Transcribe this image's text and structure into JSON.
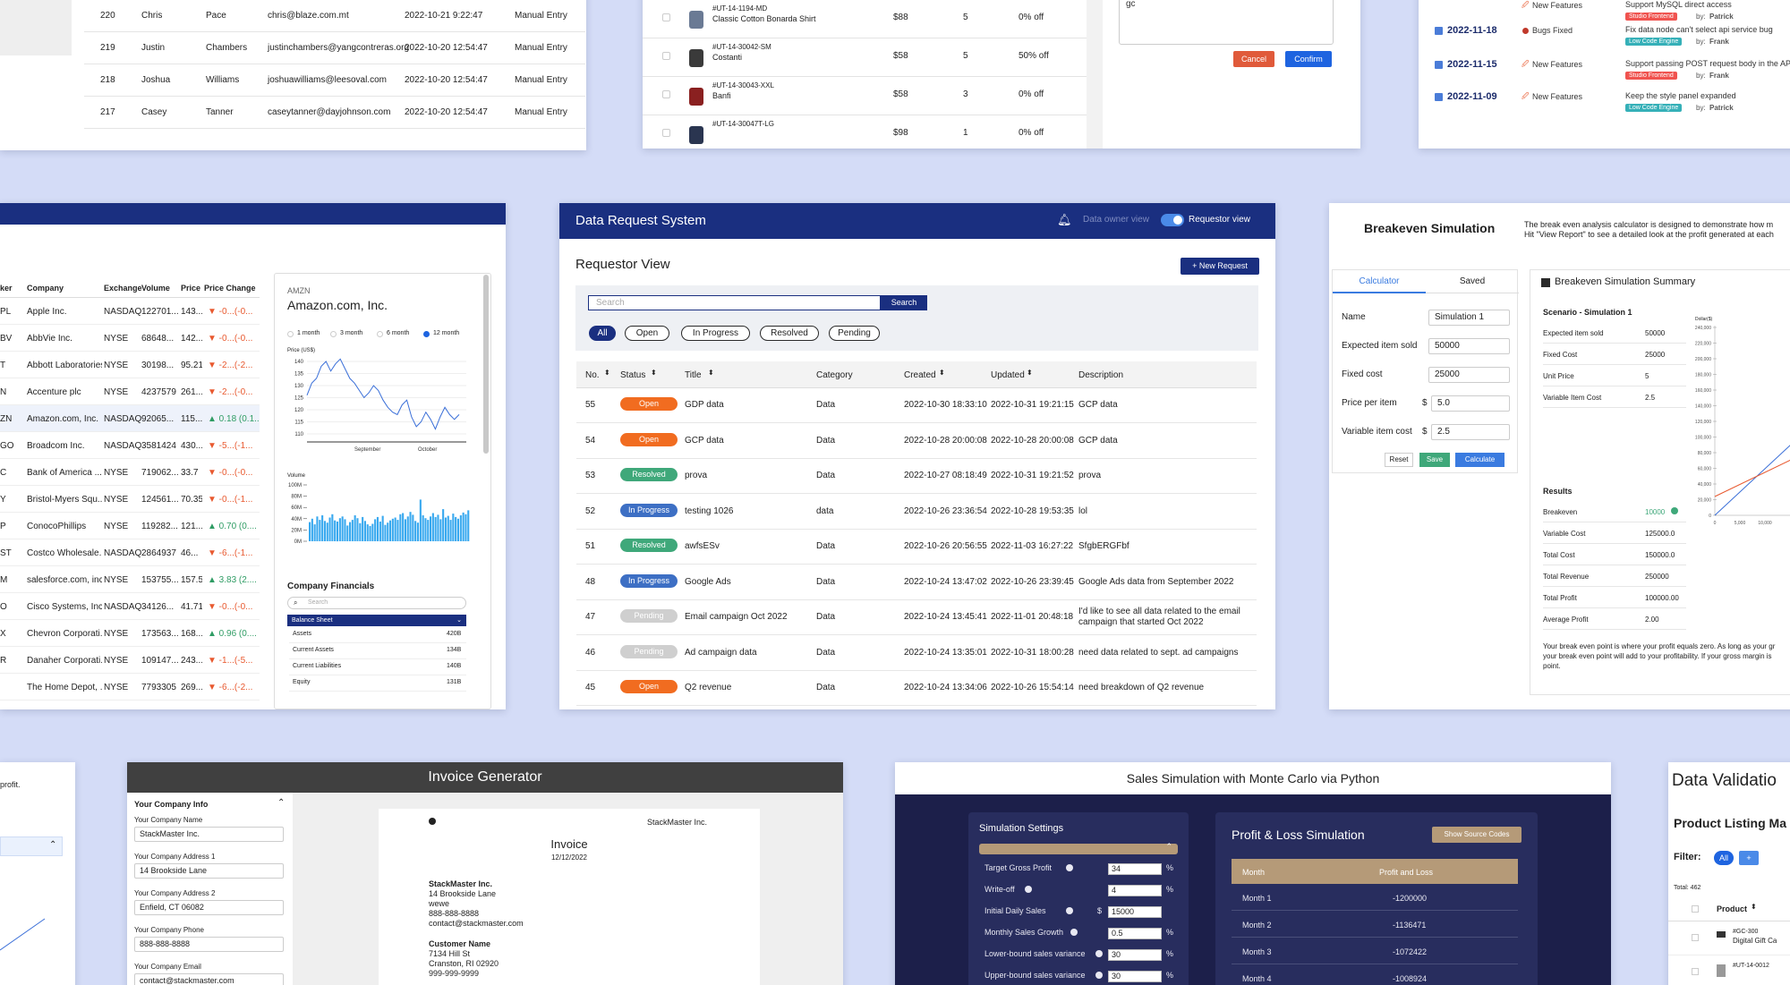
{
  "colors": {
    "background": "#d4dcf7",
    "navy": "#1a2f80",
    "orange": "#f16c20",
    "resolved": "#3fa87a",
    "in_progress": "#3d6fc4",
    "pending": "#cfcfcf",
    "dark": "#404040",
    "mc_bg": "#1c1f4a",
    "mc_panel": "#282d5e",
    "tan": "#b59a78"
  },
  "users_table": {
    "rows": [
      {
        "id": "220",
        "first": "Chris",
        "last": "Pace",
        "email": "chris@blaze.com.mt",
        "date": "2022-10-21 9:22:47",
        "source": "Manual Entry"
      },
      {
        "id": "219",
        "first": "Justin",
        "last": "Chambers",
        "email": "justinchambers@yangcontreras.org",
        "date": "2022-10-20 12:54:47",
        "source": "Manual Entry"
      },
      {
        "id": "218",
        "first": "Joshua",
        "last": "Williams",
        "email": "joshuawilliams@leesoval.com",
        "date": "2022-10-20 12:54:47",
        "source": "Manual Entry"
      },
      {
        "id": "217",
        "first": "Casey",
        "last": "Tanner",
        "email": "caseytanner@dayjohnson.com",
        "date": "2022-10-20 12:54:47",
        "source": "Manual Entry"
      }
    ]
  },
  "products_table": {
    "rows": [
      {
        "sku": "#UT-14-1194-MD",
        "name": "Classic Cotton Bonarda Shirt",
        "price": "$88",
        "qty": "5",
        "discount": "0% off",
        "color": "#6a7a94"
      },
      {
        "sku": "#UT-14-30042-SM",
        "name": "Costanti",
        "price": "$58",
        "qty": "5",
        "discount": "50% off",
        "color": "#3a3a3a"
      },
      {
        "sku": "#UT-14-30043-XXL",
        "name": "Banfi",
        "price": "$58",
        "qty": "3",
        "discount": "0% off",
        "color": "#8a2020"
      },
      {
        "sku": "#UT-14-30047T-LG",
        "name": "",
        "price": "$98",
        "qty": "1",
        "discount": "0% off",
        "color": "#2a3550"
      }
    ],
    "textarea_value": "gc",
    "cancel_label": "Cancel",
    "confirm_label": "Confirm"
  },
  "changelog": {
    "entries": [
      {
        "date": "",
        "type": "New Features",
        "desc": "Support MySQL direct access",
        "tag": "Studio Frontend",
        "tag_color": "#f0534f",
        "by": "by:",
        "author": "Patrick"
      },
      {
        "date": "2022-11-18",
        "type": "Bugs Fixed",
        "desc": "Fix data node can't select api service bug",
        "tag": "Low Code Engine",
        "tag_color": "#35b0b8",
        "by": "by:",
        "author": "Frank"
      },
      {
        "date": "2022-11-15",
        "type": "New Features",
        "desc": "Support passing POST request body in the API c",
        "tag": "Studio Frontend",
        "tag_color": "#f0534f",
        "by": "by:",
        "author": "Frank"
      },
      {
        "date": "2022-11-09",
        "type": "New Features",
        "desc": "Keep the style panel expanded",
        "tag": "Low Code Engine",
        "tag_color": "#35b0b8",
        "by": "by:",
        "author": "Patrick"
      }
    ]
  },
  "stocks": {
    "headers": [
      "ker",
      "Company",
      "Exchange",
      "Volume",
      "Price",
      "Price Change"
    ],
    "rows": [
      {
        "ticker": "PL",
        "company": "Apple Inc.",
        "exchange": "NASDAQ",
        "volume": "122701...",
        "price": "143...",
        "change": "▼ -0...(-0...",
        "up": false
      },
      {
        "ticker": "BV",
        "company": "AbbVie Inc.",
        "exchange": "NYSE",
        "volume": "68648...",
        "price": "142...",
        "change": "▼ -0...(-0...",
        "up": false
      },
      {
        "ticker": "T",
        "company": "Abbott Laboratories",
        "exchange": "NYSE",
        "volume": "30198...",
        "price": "95.21",
        "change": "▼ -2...(-2...",
        "up": false
      },
      {
        "ticker": "N",
        "company": "Accenture plc",
        "exchange": "NYSE",
        "volume": "4237579",
        "price": "261...",
        "change": "▼ -2...(-0...",
        "up": false
      },
      {
        "ticker": "ZN",
        "company": "Amazon.com, Inc.",
        "exchange": "NASDAQ",
        "volume": "92065...",
        "price": "115...",
        "change": "▲ 0.18 (0.1...",
        "up": true
      },
      {
        "ticker": "GO",
        "company": "Broadcom Inc.",
        "exchange": "NASDAQ",
        "volume": "3581424",
        "price": "430...",
        "change": "▼ -5...(-1...",
        "up": false
      },
      {
        "ticker": "C",
        "company": "Bank of America ...",
        "exchange": "NYSE",
        "volume": "719062...",
        "price": "33.7",
        "change": "▼ -0...(-0...",
        "up": false
      },
      {
        "ticker": "Y",
        "company": "Bristol-Myers Squ...",
        "exchange": "NYSE",
        "volume": "124561...",
        "price": "70.35",
        "change": "▼ -0...(-1...",
        "up": false
      },
      {
        "ticker": "P",
        "company": "ConocoPhillips",
        "exchange": "NYSE",
        "volume": "119282...",
        "price": "121...",
        "change": "▲ 0.70 (0....",
        "up": true
      },
      {
        "ticker": "ST",
        "company": "Costco Wholesale...",
        "exchange": "NASDAQ",
        "volume": "2864937",
        "price": "46...",
        "change": "▼ -6...(-1...",
        "up": false
      },
      {
        "ticker": "M",
        "company": "salesforce.com, inc.",
        "exchange": "NYSE",
        "volume": "153755...",
        "price": "157.5",
        "change": "▲ 3.83 (2....",
        "up": true
      },
      {
        "ticker": "O",
        "company": "Cisco Systems, Inc.",
        "exchange": "NASDAQ",
        "volume": "34126...",
        "price": "41.71",
        "change": "▼ -0...(-0...",
        "up": false
      },
      {
        "ticker": "X",
        "company": "Chevron Corporati...",
        "exchange": "NYSE",
        "volume": "173563...",
        "price": "168...",
        "change": "▲ 0.96 (0....",
        "up": true
      },
      {
        "ticker": "R",
        "company": "Danaher Corporati...",
        "exchange": "NYSE",
        "volume": "109147...",
        "price": "243...",
        "change": "▼ -1...(-5...",
        "up": false
      },
      {
        "ticker": "",
        "company": "The Home Depot, ...",
        "exchange": "NYSE",
        "volume": "7793305",
        "price": "269...",
        "change": "▼ -6...(-2...",
        "up": false
      }
    ],
    "detail": {
      "ticker": "AMZN",
      "name": "Amazon.com, Inc.",
      "ranges": [
        "1 month",
        "3 month",
        "6 month",
        "12 month"
      ],
      "price_label": "Price (US$)",
      "price_ticks": [
        "140",
        "135",
        "130",
        "125",
        "120",
        "115",
        "110"
      ],
      "months": [
        "September",
        "October"
      ],
      "volume_label": "Volume",
      "volume_ticks": [
        "100M",
        "80M",
        "60M",
        "40M",
        "20M",
        "0M"
      ],
      "financials_title": "Company Financials",
      "search_placeholder": "Search",
      "sheet": "Balance Sheet",
      "items": [
        {
          "label": "Assets",
          "value": "420B"
        },
        {
          "label": "Current Assets",
          "value": "134B"
        },
        {
          "label": "Current Liabilities",
          "value": "140B"
        },
        {
          "label": "Equity",
          "value": "131B"
        }
      ]
    }
  },
  "data_request": {
    "app_title": "Data Request System",
    "owner_view": "Data owner view",
    "requestor_view": "Requestor view",
    "page_title": "Requestor View",
    "new_request": "+ New Request",
    "search_placeholder": "Search",
    "search_button": "Search",
    "filters": [
      "All",
      "Open",
      "In Progress",
      "Resolved",
      "Pending"
    ],
    "columns": [
      "No.",
      "Status",
      "Title",
      "Category",
      "Created",
      "Updated",
      "Description"
    ],
    "rows": [
      {
        "no": "55",
        "status": "Open",
        "title": "GDP data",
        "category": "Data",
        "created": "2022-10-30 18:33:10",
        "updated": "2022-10-31 19:21:15",
        "desc": "GCP data",
        "desc2": ""
      },
      {
        "no": "54",
        "status": "Open",
        "title": "GCP data",
        "category": "Data",
        "created": "2022-10-28 20:00:08",
        "updated": "2022-10-28 20:00:08",
        "desc": "GCP data",
        "desc2": ""
      },
      {
        "no": "53",
        "status": "Resolved",
        "title": "prova",
        "category": "Data",
        "created": "2022-10-27 08:18:49",
        "updated": "2022-10-31 19:21:52",
        "desc": "prova",
        "desc2": ""
      },
      {
        "no": "52",
        "status": "In Progress",
        "title": "testing 1026",
        "category": "data",
        "created": "2022-10-26 23:36:54",
        "updated": "2022-10-28 19:53:35",
        "desc": "lol",
        "desc2": ""
      },
      {
        "no": "51",
        "status": "Resolved",
        "title": "awfsESv",
        "category": "Data",
        "created": "2022-10-26 20:56:55",
        "updated": "2022-11-03 16:27:22",
        "desc": "SfgbERGFbf",
        "desc2": ""
      },
      {
        "no": "48",
        "status": "In Progress",
        "title": "Google Ads",
        "category": "Data",
        "created": "2022-10-24 13:47:02",
        "updated": "2022-10-26 23:39:45",
        "desc": "Google Ads data from September 2022",
        "desc2": ""
      },
      {
        "no": "47",
        "status": "Pending",
        "title": "Email campaign Oct 2022",
        "category": "Data",
        "created": "2022-10-24 13:45:41",
        "updated": "2022-11-01 20:48:18",
        "desc": "I'd like to see all data related to the email",
        "desc2": "campaign that started Oct 2022"
      },
      {
        "no": "46",
        "status": "Pending",
        "title": "Ad campaign data",
        "category": "Data",
        "created": "2022-10-24 13:35:01",
        "updated": "2022-10-31 18:00:28",
        "desc": "need data related to sept. ad campaigns",
        "desc2": ""
      },
      {
        "no": "45",
        "status": "Open",
        "title": "Q2 revenue",
        "category": "Data",
        "created": "2022-10-24 13:34:06",
        "updated": "2022-10-26 15:54:14",
        "desc": "need breakdown of Q2 revenue",
        "desc2": ""
      }
    ]
  },
  "breakeven": {
    "title": "Breakeven Simulation",
    "intro_line1": "The break even analysis calculator is designed to demonstrate how m",
    "intro_line2": "Hit \"View Report\" to see a detailed look at the profit generated at each",
    "tabs": [
      "Calculator",
      "Saved"
    ],
    "fields": [
      {
        "label": "Name",
        "value": "Simulation 1",
        "prefix": ""
      },
      {
        "label": "Expected item sold",
        "value": "50000",
        "prefix": ""
      },
      {
        "label": "Fixed cost",
        "value": "25000",
        "prefix": ""
      },
      {
        "label": "Price per item",
        "value": "5.0",
        "prefix": "$"
      },
      {
        "label": "Variable item cost",
        "value": "2.5",
        "prefix": "$"
      }
    ],
    "reset": "Reset",
    "save": "Save",
    "calculate": "Calculate",
    "summary_title": "Breakeven Simulation Summary",
    "scenario": "Scenario - Simulation 1",
    "scenario_rows": [
      {
        "label": "Expected item sold",
        "value": "50000"
      },
      {
        "label": "Fixed Cost",
        "value": "25000"
      },
      {
        "label": "Unit Price",
        "value": "5"
      },
      {
        "label": "Variable Item Cost",
        "value": "2.5"
      }
    ],
    "results_title": "Results",
    "result_rows": [
      {
        "label": "Breakeven",
        "value": "10000"
      },
      {
        "label": "Variable Cost",
        "value": "125000.0"
      },
      {
        "label": "Total Cost",
        "value": "150000.0"
      },
      {
        "label": "Total Revenue",
        "value": "250000"
      },
      {
        "label": "Total Profit",
        "value": "100000.00"
      },
      {
        "label": "Average Profit",
        "value": "2.00"
      }
    ],
    "chart_ylabel": "Dollar($)",
    "chart_ticks": [
      "240,000",
      "220,000",
      "200,000",
      "180,000",
      "160,000",
      "140,000",
      "120,000",
      "100,000",
      "80,000",
      "60,000",
      "40,000",
      "20,000",
      "0"
    ],
    "chart_xticks": [
      "0",
      "5,000",
      "10,000"
    ],
    "note_line1": "Your break even point is where your profit equals zero. As long as your gr",
    "note_line2": "your break even point will add to your profitability. If your gross margin is",
    "note_line3": "point."
  },
  "left_bottom": {
    "text": "profit."
  },
  "invoice": {
    "title": "Invoice Generator",
    "section": "Your Company Info",
    "fields": [
      {
        "label": "Your Company Name",
        "value": "StackMaster Inc."
      },
      {
        "label": "Your Company Address 1",
        "value": "14 Brookside Lane"
      },
      {
        "label": "Your Company Address 2",
        "value": "Enfield, CT 06082"
      },
      {
        "label": "Your Company Phone",
        "value": "888-888-8888"
      },
      {
        "label": "Your Company Email",
        "value": "contact@stackmaster.com"
      }
    ],
    "doc_company": "StackMaster Inc.",
    "doc_title": "Invoice",
    "doc_date": "12/12/2022",
    "from_name": "StackMaster Inc.",
    "from_lines": [
      "14 Brookside Lane",
      "wewe",
      "888-888-8888",
      "contact@stackmaster.com"
    ],
    "customer_title": "Customer Name",
    "customer_lines": [
      "7134 Hill St",
      "Cranston, RI 02920",
      "999-999-9999"
    ]
  },
  "monte_carlo": {
    "title": "Sales Simulation with Monte Carlo via Python",
    "settings_title": "Simulation Settings",
    "settings": [
      {
        "label": "Target Gross Profit",
        "value": "34",
        "unit": "%",
        "prefix": ""
      },
      {
        "label": "Write-off",
        "value": "4",
        "unit": "%",
        "prefix": ""
      },
      {
        "label": "Initial Daily Sales",
        "value": "15000",
        "unit": "",
        "prefix": "$"
      },
      {
        "label": "Monthly Sales Growth",
        "value": "0.5",
        "unit": "%",
        "prefix": ""
      },
      {
        "label": "Lower-bound sales variance",
        "value": "30",
        "unit": "%",
        "prefix": ""
      },
      {
        "label": "Upper-bound sales variance",
        "value": "30",
        "unit": "%",
        "prefix": ""
      }
    ],
    "pl_title": "Profit & Loss Simulation",
    "show_source": "Show Source Codes",
    "col_month": "Month",
    "col_pl": "Profit and Loss",
    "rows": [
      {
        "month": "Month 1",
        "value": "-1200000"
      },
      {
        "month": "Month 2",
        "value": "-1136471"
      },
      {
        "month": "Month 3",
        "value": "-1072422"
      },
      {
        "month": "Month 4",
        "value": "-1008924"
      }
    ]
  },
  "data_validation": {
    "title": "Data Validatio",
    "subtitle": "Product Listing Ma",
    "filter_label": "Filter:",
    "filter_all": "All",
    "filter_plus": "+",
    "total": "Total: 462",
    "col_product": "Product",
    "rows": [
      {
        "sku": "#GC-300",
        "name": "Digital Gift Ca"
      },
      {
        "sku": "#UT-14-0012",
        "name": ""
      }
    ]
  }
}
